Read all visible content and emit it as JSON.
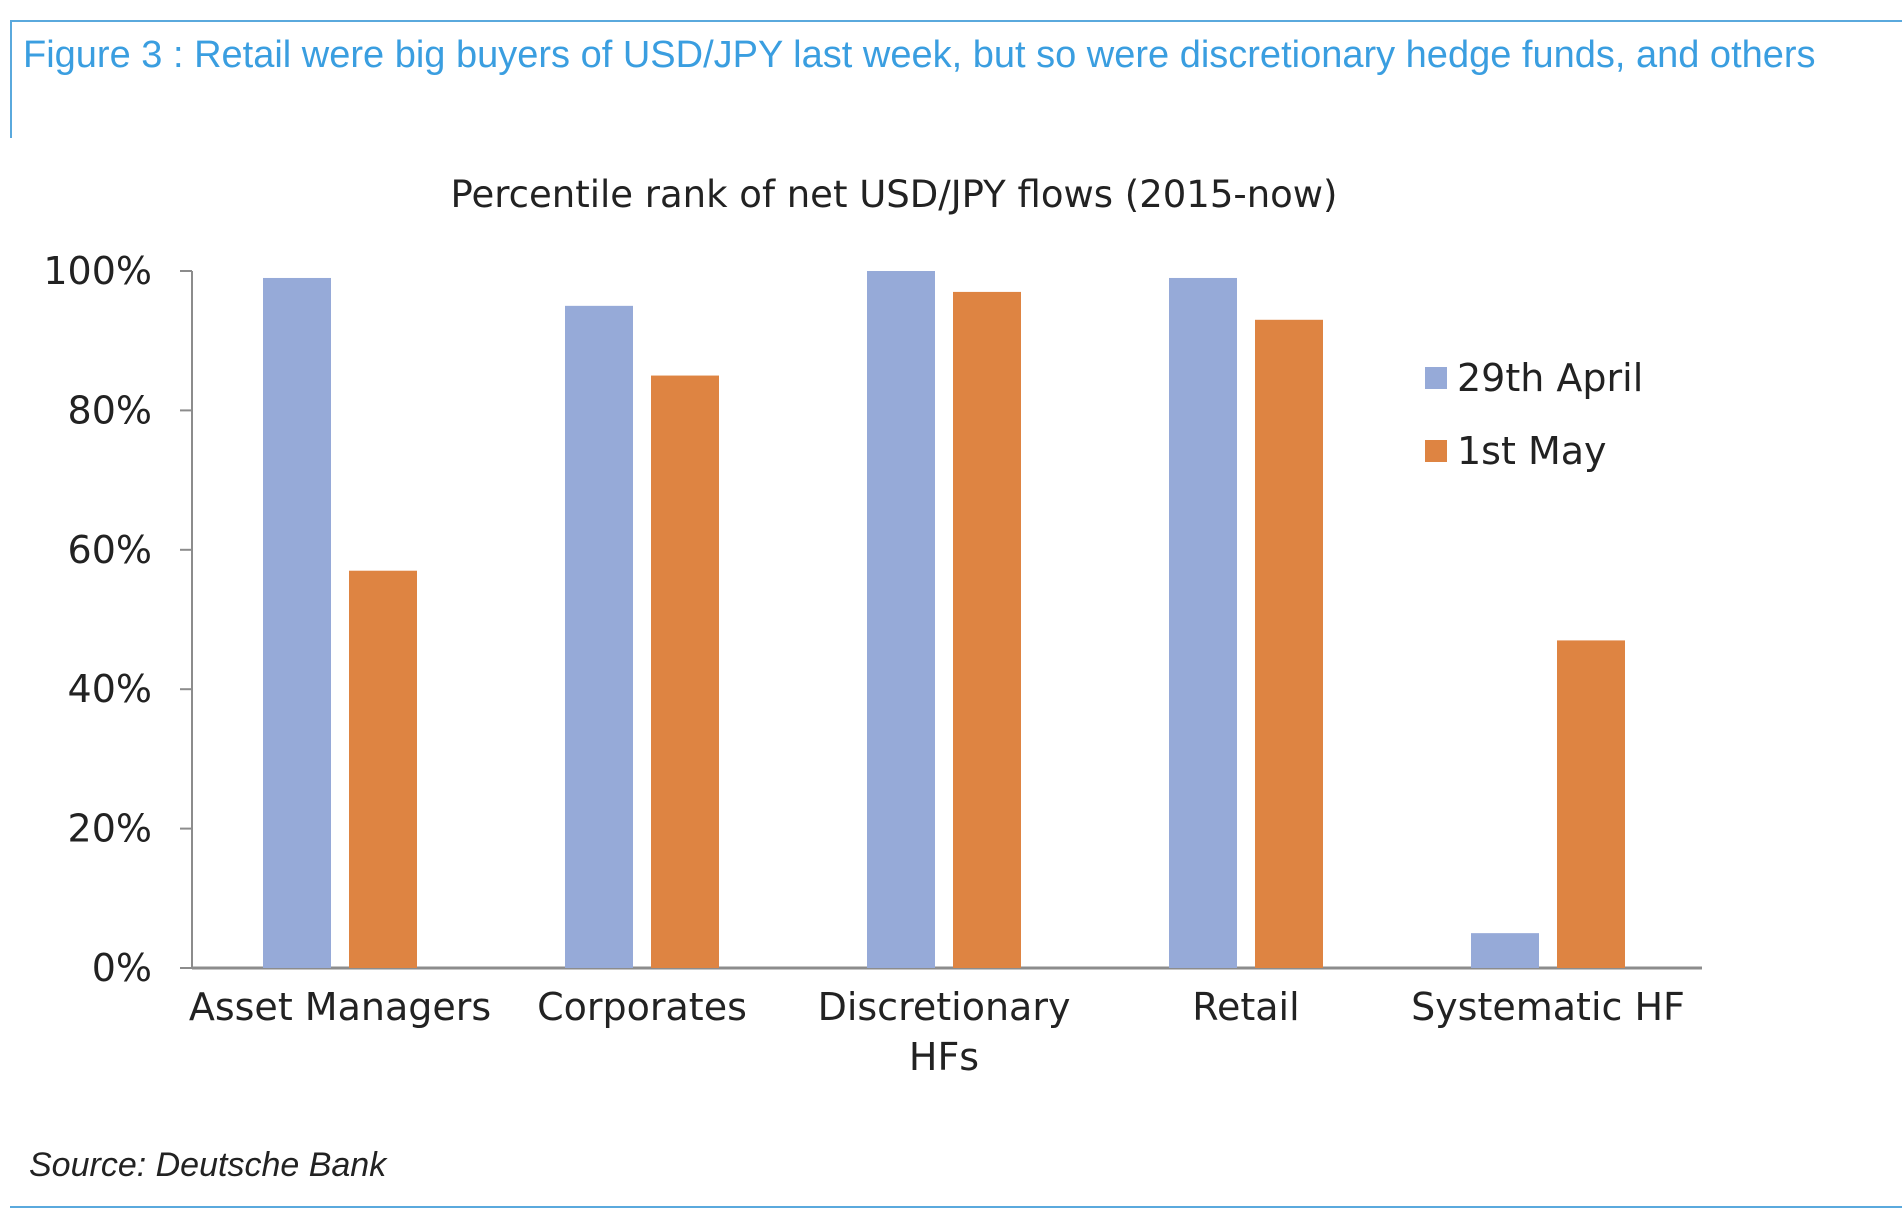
{
  "figure": {
    "caption": "Figure 3 : Retail were big buyers of USD/JPY last week, but so were discretionary hedge funds, and others",
    "source": "Source: Deutsche Bank"
  },
  "colors": {
    "caption": "#3a9ee0",
    "rule": "#5aa9dd",
    "series_april": "#96aad8",
    "series_may": "#de8442",
    "axis": "#8c8c8c",
    "text": "#222222"
  },
  "chart_data": {
    "type": "bar",
    "title": "Percentile rank of net USD/JPY flows (2015-now)",
    "xlabel": "",
    "ylabel": "",
    "categories": [
      "Asset Managers",
      "Corporates",
      "Discretionary HFs",
      "Retail",
      "Systematic HF"
    ],
    "category_lines": [
      [
        "Asset Managers"
      ],
      [
        "Corporates"
      ],
      [
        "Discretionary",
        "HFs"
      ],
      [
        "Retail"
      ],
      [
        "Systematic HF"
      ]
    ],
    "series": [
      {
        "name": "29th April",
        "values": [
          99,
          95,
          100,
          99,
          5
        ],
        "color": "#96aad8"
      },
      {
        "name": "1st May",
        "values": [
          57,
          85,
          97,
          93,
          47
        ],
        "color": "#de8442"
      }
    ],
    "ylim": [
      0,
      100
    ],
    "yticks": [
      0,
      20,
      40,
      60,
      80,
      100
    ],
    "ytick_labels": [
      "0%",
      "20%",
      "40%",
      "60%",
      "80%",
      "100%"
    ],
    "grid": false,
    "legend": "right"
  }
}
